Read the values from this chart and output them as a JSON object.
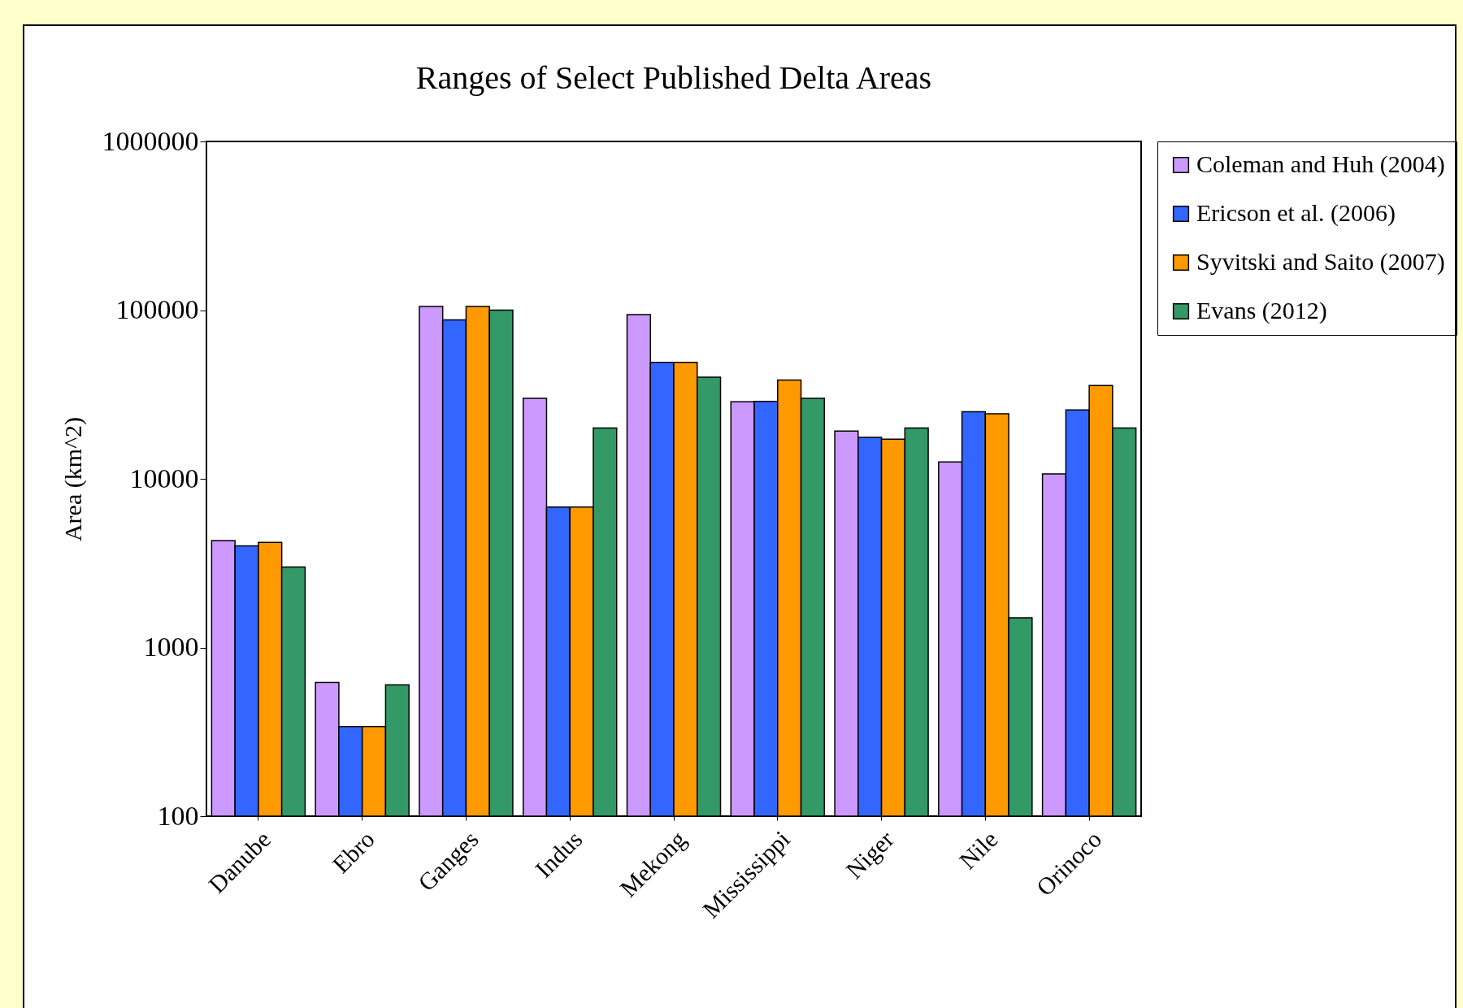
{
  "chart_data": {
    "type": "bar",
    "title": "Ranges of Select Published Delta Areas",
    "ylabel": "Area (km^2)",
    "categories": [
      "Danube",
      "Ebro",
      "Ganges",
      "Indus",
      "Mekong",
      "Mississippi",
      "Niger",
      "Nile",
      "Orinoco"
    ],
    "series": [
      {
        "name": "Coleman and Huh (2004)",
        "color": "#cc99ff",
        "values": [
          4300,
          620,
          105000,
          30000,
          94000,
          28600,
          19200,
          12600,
          10700
        ]
      },
      {
        "name": "Ericson et al. (2006)",
        "color": "#3366ff",
        "values": [
          4000,
          340,
          87500,
          6800,
          49000,
          28800,
          17600,
          25000,
          25600
        ]
      },
      {
        "name": "Syvitski and Saito (2007)",
        "color": "#ff9900",
        "values": [
          4200,
          340,
          105000,
          6800,
          49000,
          38500,
          17200,
          24300,
          35700
        ]
      },
      {
        "name": "Evans (2012)",
        "color": "#339966",
        "values": [
          3000,
          600,
          100000,
          20000,
          40000,
          30000,
          20000,
          1500,
          20000
        ]
      }
    ],
    "log": true,
    "ylim": [
      100,
      1000000
    ],
    "yticks": [
      100,
      1000,
      10000,
      100000,
      1000000
    ],
    "grid": false,
    "legend": "right"
  }
}
